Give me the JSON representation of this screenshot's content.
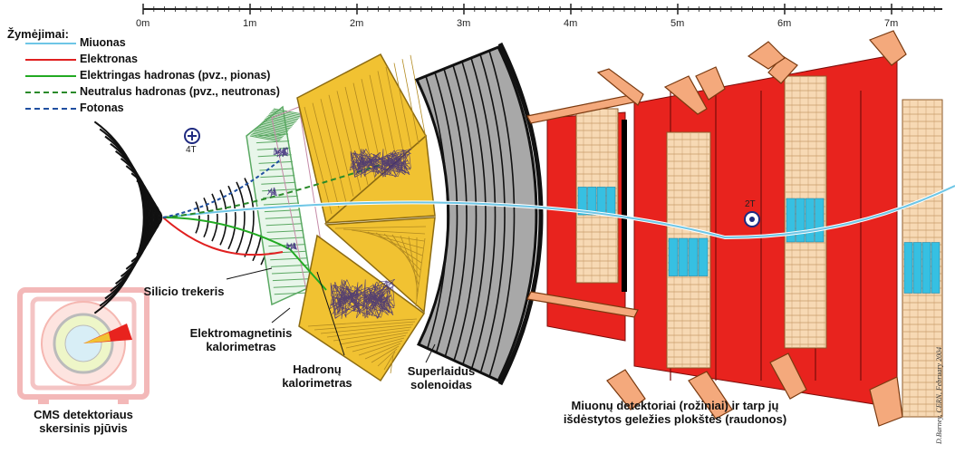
{
  "legend": {
    "title": "Žymėjimai:",
    "items": [
      {
        "label": "Miuonas",
        "color": "#6ec6e6",
        "style": "solid"
      },
      {
        "label": "Elektronas",
        "color": "#e02020",
        "style": "solid"
      },
      {
        "label": "Elektringas hadronas (pvz., pionas)",
        "color": "#22aa22",
        "style": "solid"
      },
      {
        "label": "Neutralus hadronas (pvz., neutronas)",
        "color": "#2a8a2a",
        "style": "dashed"
      },
      {
        "label": "Fotonas",
        "color": "#1f4fa0",
        "style": "dashed"
      }
    ]
  },
  "ruler": {
    "ticks": [
      "0m",
      "1m",
      "2m",
      "3m",
      "4m",
      "5m",
      "6m",
      "7m"
    ]
  },
  "field_labels": {
    "inner": "4T",
    "outer": "2T"
  },
  "labels": {
    "tracker": "Silicio trekeris",
    "ecal_line1": "Elektromagnetinis",
    "ecal_line2": "kalorimetras",
    "hcal_line1": "Hadronų",
    "hcal_line2": "kalorimetras",
    "solenoid_line1": "Superlaidus",
    "solenoid_line2": "solenoidas",
    "muon_line1": "Miuonų detektoriai (rožiniai) ir tarp jų",
    "muon_line2": "išdėstytos geležies plokštės (raudonos)",
    "section_line1": "CMS detektoriaus",
    "section_line2": "skersinis pjūvis"
  },
  "credit": "D.Barney, CERN, February 2004",
  "colors": {
    "iron": "#e8231e",
    "muon_chamber": "#f4a97c",
    "hcal": "#f1c232",
    "ecal": "#9fd9a6",
    "solenoid": "#999999",
    "muon_track": "#6ec6e6"
  }
}
